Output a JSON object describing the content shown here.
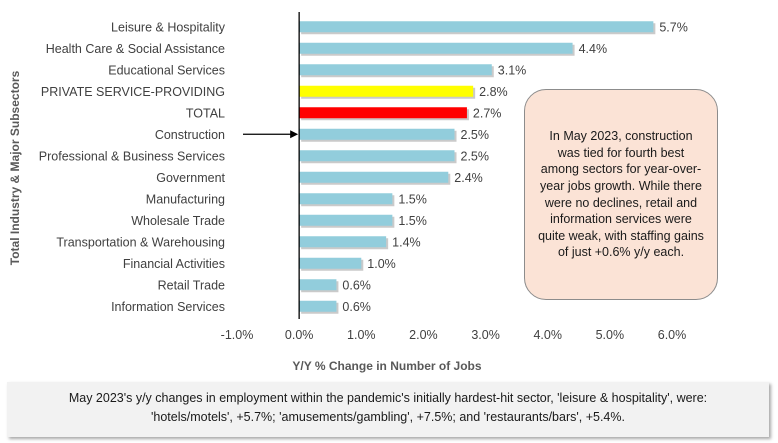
{
  "chart_data": {
    "type": "bar",
    "orientation": "horizontal",
    "categories": [
      "Leisure & Hospitality",
      "Health Care & Social Assistance",
      "Educational Services",
      "PRIVATE SERVICE-PROVIDING",
      "TOTAL",
      "Construction",
      "Professional & Business Services",
      "Government",
      "Manufacturing",
      "Wholesale Trade",
      "Transportation & Warehousing",
      "Financial Activities",
      "Retail Trade",
      "Information Services"
    ],
    "values": [
      5.7,
      4.4,
      3.1,
      2.8,
      2.7,
      2.5,
      2.5,
      2.4,
      1.5,
      1.5,
      1.4,
      1.0,
      0.6,
      0.6
    ],
    "value_labels": [
      "5.7%",
      "4.4%",
      "3.1%",
      "2.8%",
      "2.7%",
      "2.5%",
      "2.5%",
      "2.4%",
      "1.5%",
      "1.5%",
      "1.4%",
      "1.0%",
      "0.6%",
      "0.6%"
    ],
    "bar_colors": [
      "#92cddc",
      "#92cddc",
      "#92cddc",
      "#ffff00",
      "#ff0000",
      "#92cddc",
      "#92cddc",
      "#92cddc",
      "#92cddc",
      "#92cddc",
      "#92cddc",
      "#92cddc",
      "#92cddc",
      "#92cddc"
    ],
    "highlighted_category": "Construction",
    "xlabel": "Y/Y % Change in Number of Jobs",
    "ylabel": "Total Industry & Major Subsectors",
    "xlim": [
      -1.0,
      6.0
    ],
    "xticks": [
      -1.0,
      0.0,
      1.0,
      2.0,
      3.0,
      4.0,
      5.0,
      6.0
    ],
    "xtick_labels": [
      "-1.0%",
      "0.0%",
      "1.0%",
      "2.0%",
      "3.0%",
      "4.0%",
      "5.0%",
      "6.0%"
    ],
    "grid": false,
    "legend": "none"
  },
  "callout": {
    "text": "In May 2023, construction was tied for fourth best among sectors for year-over-year jobs growth. While there were no declines, retail and information services were quite weak, with  staffing gains of just +0.6% y/y each."
  },
  "footnote": {
    "line1": "May 2023's y/y changes in employment within the pandemic's initially hardest-hit sector, 'leisure & hospitality', were:",
    "line2": "'hotels/motels', +5.7%; 'amusements/gambling', +7.5%; and 'restaurants/bars', +5.4%."
  },
  "colors": {
    "default_bar": "#92cddc",
    "private_bar": "#ffff00",
    "total_bar": "#ff0000",
    "callout_fill": "#fbe3d6",
    "footnote_fill": "#f2f2f2"
  }
}
